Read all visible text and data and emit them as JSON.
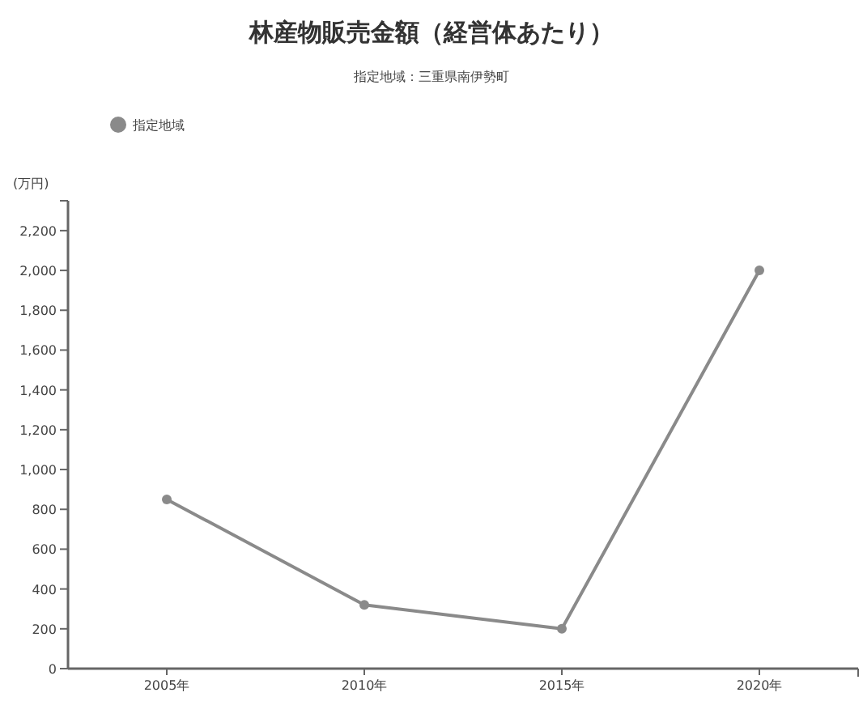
{
  "chart_data": {
    "type": "line",
    "title": "林産物販売金額（経営体あたり）",
    "subtitle": "指定地域：三重県南伊勢町",
    "ylabel": "(万円)",
    "categories": [
      "2005年",
      "2010年",
      "2015年",
      "2020年"
    ],
    "series": [
      {
        "name": "指定地域",
        "color": "#8a8a8a",
        "values": [
          850,
          320,
          200,
          2000
        ]
      }
    ],
    "ylim": [
      0,
      2350
    ],
    "yticks": [
      {
        "value": 0,
        "label": "0"
      },
      {
        "value": 200,
        "label": "200"
      },
      {
        "value": 400,
        "label": "400"
      },
      {
        "value": 600,
        "label": "600"
      },
      {
        "value": 800,
        "label": "800"
      },
      {
        "value": 1000,
        "label": "1,000"
      },
      {
        "value": 1200,
        "label": "1,200"
      },
      {
        "value": 1400,
        "label": "1,400"
      },
      {
        "value": 1600,
        "label": "1,600"
      },
      {
        "value": 1800,
        "label": "1,800"
      },
      {
        "value": 2000,
        "label": "2,000"
      },
      {
        "value": 2200,
        "label": "2,200"
      }
    ],
    "legend": "top left",
    "marker": "circle",
    "grid": false
  }
}
